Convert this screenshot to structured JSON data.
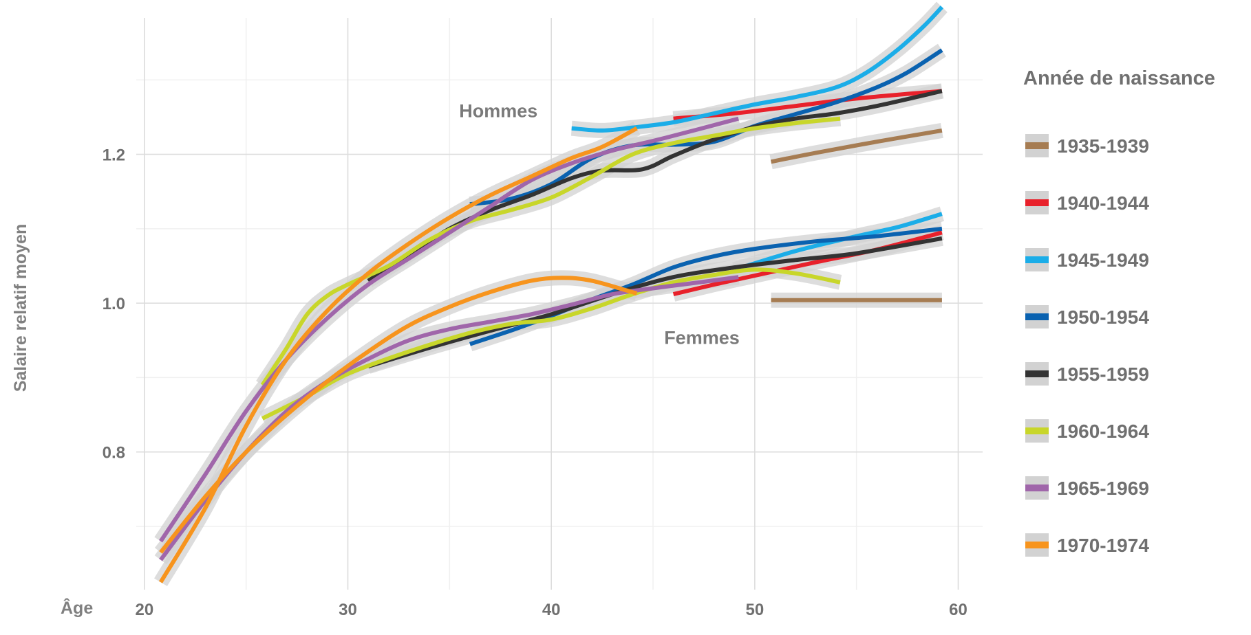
{
  "chart_data": {
    "type": "line",
    "title": "",
    "xlabel": "Âge",
    "ylabel": "Salaire relatif moyen",
    "xlim": [
      19.6,
      61.2
    ],
    "ylim": [
      0.615,
      1.4
    ],
    "x_ticks": [
      20,
      30,
      40,
      50,
      60
    ],
    "y_ticks": [
      0.8,
      1.0,
      1.2
    ],
    "grid": true,
    "legend_title": "Année de naissance",
    "legend_position": "right",
    "annotations": [
      {
        "text": "Hommes",
        "x": 37.4,
        "y": 1.25
      },
      {
        "text": "Femmes",
        "x": 47.4,
        "y": 0.945
      }
    ],
    "series": [
      {
        "name": "1935-1939",
        "color": "#a67c52",
        "hommes": [
          [
            50.8,
            1.19
          ],
          [
            53,
            1.202
          ],
          [
            56,
            1.217
          ],
          [
            59.2,
            1.232
          ]
        ],
        "femmes": [
          [
            50.8,
            1.004
          ],
          [
            55,
            1.004
          ],
          [
            59.2,
            1.004
          ]
        ]
      },
      {
        "name": "1940-1944",
        "color": "#e8212b",
        "hommes": [
          [
            46,
            1.248
          ],
          [
            49,
            1.255
          ],
          [
            52,
            1.265
          ],
          [
            55,
            1.275
          ],
          [
            59.2,
            1.285
          ]
        ],
        "femmes": [
          [
            46,
            1.012
          ],
          [
            48,
            1.025
          ],
          [
            50,
            1.037
          ],
          [
            53,
            1.055
          ],
          [
            56,
            1.072
          ],
          [
            59.2,
            1.095
          ]
        ]
      },
      {
        "name": "1945-1949",
        "color": "#1bade8",
        "hommes": [
          [
            41,
            1.235
          ],
          [
            42.5,
            1.232
          ],
          [
            44,
            1.236
          ],
          [
            46,
            1.243
          ],
          [
            48,
            1.255
          ],
          [
            50,
            1.267
          ],
          [
            52,
            1.277
          ],
          [
            54,
            1.29
          ],
          [
            55.5,
            1.31
          ],
          [
            57,
            1.34
          ],
          [
            58.3,
            1.372
          ],
          [
            59.2,
            1.398
          ]
        ],
        "femmes": [
          [
            49,
            1.045
          ],
          [
            52,
            1.07
          ],
          [
            55,
            1.09
          ],
          [
            57,
            1.102
          ],
          [
            59.2,
            1.12
          ]
        ]
      },
      {
        "name": "1950-1954",
        "color": "#0a62b0",
        "hommes": [
          [
            36,
            1.133
          ],
          [
            38,
            1.14
          ],
          [
            40,
            1.16
          ],
          [
            42,
            1.195
          ],
          [
            44,
            1.212
          ],
          [
            46,
            1.213
          ],
          [
            48,
            1.217
          ],
          [
            50,
            1.238
          ],
          [
            52,
            1.254
          ],
          [
            54,
            1.27
          ],
          [
            56,
            1.29
          ],
          [
            57.5,
            1.31
          ],
          [
            59.2,
            1.34
          ]
        ],
        "femmes": [
          [
            36,
            0.945
          ],
          [
            38,
            0.963
          ],
          [
            40,
            0.983
          ],
          [
            42,
            1.005
          ],
          [
            44,
            1.025
          ],
          [
            46,
            1.048
          ],
          [
            48,
            1.063
          ],
          [
            50,
            1.073
          ],
          [
            53,
            1.083
          ],
          [
            56,
            1.09
          ],
          [
            59.2,
            1.1
          ]
        ]
      },
      {
        "name": "1955-1959",
        "color": "#333333",
        "hommes": [
          [
            31,
            1.03
          ],
          [
            33,
            1.065
          ],
          [
            35,
            1.1
          ],
          [
            37,
            1.125
          ],
          [
            39,
            1.145
          ],
          [
            41,
            1.168
          ],
          [
            42.5,
            1.178
          ],
          [
            44.5,
            1.18
          ],
          [
            46,
            1.198
          ],
          [
            48,
            1.22
          ],
          [
            50,
            1.237
          ],
          [
            52,
            1.248
          ],
          [
            54,
            1.255
          ],
          [
            56,
            1.265
          ],
          [
            59.2,
            1.285
          ]
        ],
        "femmes": [
          [
            31,
            0.915
          ],
          [
            34,
            0.94
          ],
          [
            37,
            0.963
          ],
          [
            40,
            0.985
          ],
          [
            43,
            1.012
          ],
          [
            46,
            1.035
          ],
          [
            49,
            1.048
          ],
          [
            52,
            1.058
          ],
          [
            55,
            1.067
          ],
          [
            59.2,
            1.087
          ]
        ]
      },
      {
        "name": "1960-1964",
        "color": "#c8d62a",
        "hommes": [
          [
            25.8,
            0.89
          ],
          [
            27,
            0.94
          ],
          [
            28,
            0.985
          ],
          [
            29,
            1.01
          ],
          [
            30,
            1.025
          ],
          [
            32,
            1.05
          ],
          [
            34,
            1.085
          ],
          [
            36,
            1.11
          ],
          [
            38,
            1.125
          ],
          [
            40,
            1.142
          ],
          [
            42,
            1.17
          ],
          [
            44,
            1.2
          ],
          [
            46,
            1.215
          ],
          [
            48,
            1.225
          ],
          [
            50,
            1.235
          ],
          [
            52,
            1.242
          ],
          [
            54.2,
            1.248
          ]
        ],
        "femmes": [
          [
            25.8,
            0.845
          ],
          [
            28,
            0.875
          ],
          [
            30,
            0.905
          ],
          [
            33,
            0.935
          ],
          [
            36,
            0.96
          ],
          [
            38,
            0.972
          ],
          [
            40,
            0.978
          ],
          [
            42,
            0.993
          ],
          [
            44,
            1.012
          ],
          [
            46,
            1.028
          ],
          [
            48,
            1.038
          ],
          [
            50,
            1.045
          ],
          [
            52,
            1.04
          ],
          [
            54.2,
            1.028
          ]
        ]
      },
      {
        "name": "1965-1969",
        "color": "#a066aa",
        "hommes": [
          [
            20.8,
            0.68
          ],
          [
            23,
            0.77
          ],
          [
            25,
            0.855
          ],
          [
            27,
            0.925
          ],
          [
            29,
            0.98
          ],
          [
            31,
            1.025
          ],
          [
            33,
            1.06
          ],
          [
            35,
            1.095
          ],
          [
            37,
            1.13
          ],
          [
            39,
            1.165
          ],
          [
            41,
            1.188
          ],
          [
            43,
            1.205
          ],
          [
            45,
            1.218
          ],
          [
            47,
            1.232
          ],
          [
            49.2,
            1.248
          ]
        ],
        "femmes": [
          [
            20.8,
            0.655
          ],
          [
            23,
            0.735
          ],
          [
            25,
            0.8
          ],
          [
            27,
            0.855
          ],
          [
            29,
            0.895
          ],
          [
            31,
            0.925
          ],
          [
            33,
            0.95
          ],
          [
            35,
            0.965
          ],
          [
            37,
            0.975
          ],
          [
            39,
            0.985
          ],
          [
            41,
            0.998
          ],
          [
            43,
            1.012
          ],
          [
            45,
            1.02
          ],
          [
            47,
            1.027
          ],
          [
            49.2,
            1.035
          ]
        ]
      },
      {
        "name": "1970-1974",
        "color": "#f7941d",
        "hommes": [
          [
            20.8,
            0.625
          ],
          [
            23,
            0.725
          ],
          [
            25,
            0.835
          ],
          [
            27,
            0.925
          ],
          [
            29,
            0.99
          ],
          [
            31,
            1.04
          ],
          [
            33,
            1.08
          ],
          [
            35,
            1.115
          ],
          [
            37,
            1.145
          ],
          [
            39,
            1.17
          ],
          [
            41,
            1.195
          ],
          [
            42.5,
            1.21
          ],
          [
            44.2,
            1.235
          ]
        ],
        "femmes": [
          [
            20.8,
            0.665
          ],
          [
            23,
            0.74
          ],
          [
            25,
            0.8
          ],
          [
            27,
            0.85
          ],
          [
            29,
            0.895
          ],
          [
            31,
            0.935
          ],
          [
            33,
            0.97
          ],
          [
            35,
            0.995
          ],
          [
            37,
            1.015
          ],
          [
            39,
            1.03
          ],
          [
            40.5,
            1.034
          ],
          [
            42,
            1.03
          ],
          [
            44.2,
            1.013
          ]
        ]
      }
    ]
  }
}
